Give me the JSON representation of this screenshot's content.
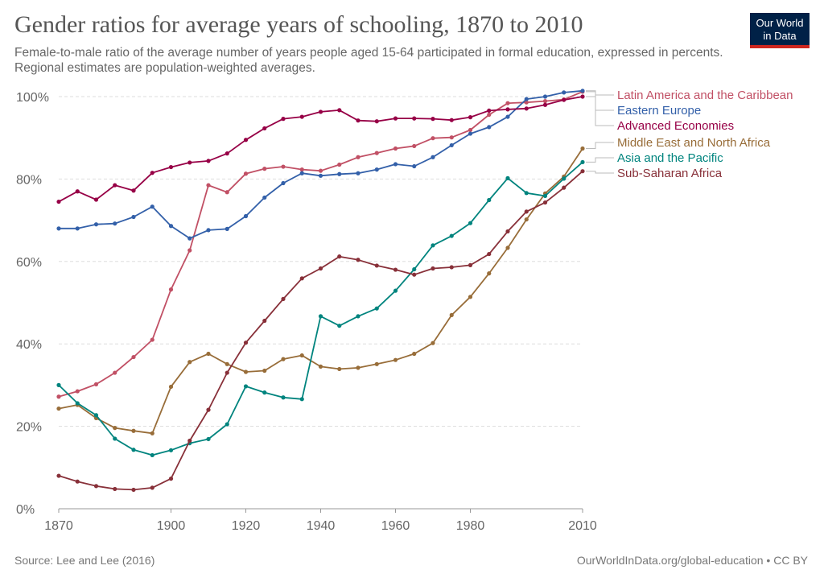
{
  "header": {
    "title": "Gender ratios for average years of schooling, 1870 to 2010",
    "subtitle": "Female-to-male ratio of the average number of years people aged 15-64 participated in formal education, expressed in percents. Regional estimates are population-weighted averages."
  },
  "logo": {
    "line1": "Our World",
    "line2": "in Data",
    "bg_color": "#002147",
    "accent_color": "#ce261e"
  },
  "footer": {
    "source": "Source: Lee and Lee (2016)",
    "credit": "OurWorldInData.org/global-education • CC BY"
  },
  "chart_data": {
    "type": "line",
    "title": "Gender ratios for average years of schooling, 1870 to 2010",
    "xlabel": "",
    "ylabel": "",
    "xlim": [
      1870,
      2010
    ],
    "ylim": [
      0,
      100
    ],
    "x_ticks": [
      1870,
      1900,
      1920,
      1940,
      1960,
      1980,
      2010
    ],
    "y_ticks": [
      0,
      20,
      40,
      60,
      80,
      100
    ],
    "y_tick_suffix": "%",
    "grid": "horizontal dashed",
    "legend_position": "right",
    "x": [
      1870,
      1875,
      1880,
      1885,
      1890,
      1895,
      1900,
      1905,
      1910,
      1915,
      1920,
      1925,
      1930,
      1935,
      1940,
      1945,
      1950,
      1955,
      1960,
      1965,
      1970,
      1975,
      1980,
      1985,
      1990,
      1995,
      2000,
      2005,
      2010
    ],
    "series": [
      {
        "name": "Latin America and the Caribbean",
        "color": "#c15065",
        "values": [
          27.2,
          28.5,
          30.2,
          33.0,
          36.8,
          41.0,
          53.2,
          62.7,
          78.5,
          76.8,
          81.3,
          82.5,
          83.0,
          82.3,
          82.0,
          83.5,
          85.3,
          86.3,
          87.4,
          88.0,
          89.9,
          90.1,
          91.9,
          95.6,
          98.4,
          98.6,
          98.9,
          99.3,
          101.2
        ]
      },
      {
        "name": "Eastern Europe",
        "color": "#3360a9",
        "values": [
          68.0,
          68.0,
          69.0,
          69.2,
          70.8,
          73.3,
          68.6,
          65.6,
          67.6,
          67.9,
          71.0,
          75.5,
          79.0,
          81.4,
          80.8,
          81.2,
          81.4,
          82.3,
          83.6,
          83.1,
          85.3,
          88.2,
          91.0,
          92.6,
          95.1,
          99.4,
          100.0,
          101.0,
          101.4
        ]
      },
      {
        "name": "Advanced Economies",
        "color": "#970046",
        "values": [
          74.5,
          77.0,
          75.0,
          78.5,
          77.2,
          81.5,
          82.9,
          84.0,
          84.4,
          86.2,
          89.5,
          92.3,
          94.6,
          95.1,
          96.3,
          96.7,
          94.2,
          94.0,
          94.7,
          94.7,
          94.6,
          94.3,
          95.0,
          96.6,
          96.9,
          97.1,
          98.0,
          99.2,
          100.0
        ]
      },
      {
        "name": "Middle East and North Africa",
        "color": "#986d39",
        "values": [
          24.3,
          25.2,
          22.0,
          19.6,
          18.9,
          18.3,
          29.6,
          35.6,
          37.6,
          35.1,
          33.2,
          33.5,
          36.3,
          37.2,
          34.5,
          33.9,
          34.2,
          35.1,
          36.1,
          37.6,
          40.2,
          47.0,
          51.4,
          57.1,
          63.3,
          70.2,
          76.5,
          80.6,
          87.4
        ]
      },
      {
        "name": "Asia and the Pacific",
        "color": "#00847e",
        "values": [
          30.0,
          25.6,
          22.7,
          17.0,
          14.3,
          13.0,
          14.2,
          15.9,
          16.9,
          20.5,
          29.7,
          28.2,
          27.0,
          26.6,
          46.7,
          44.4,
          46.7,
          48.6,
          52.9,
          58.1,
          63.9,
          66.2,
          69.3,
          74.9,
          80.2,
          76.6,
          75.9,
          80.1,
          84.1
        ]
      },
      {
        "name": "Sub-Saharan Africa",
        "color": "#883039",
        "values": [
          8.0,
          6.6,
          5.5,
          4.8,
          4.6,
          5.1,
          7.3,
          16.5,
          24.0,
          33.0,
          40.3,
          45.6,
          50.9,
          55.9,
          58.3,
          61.2,
          60.4,
          59.0,
          58.0,
          56.8,
          58.3,
          58.6,
          59.1,
          61.8,
          67.3,
          72.1,
          74.3,
          77.9,
          81.9
        ]
      }
    ]
  }
}
